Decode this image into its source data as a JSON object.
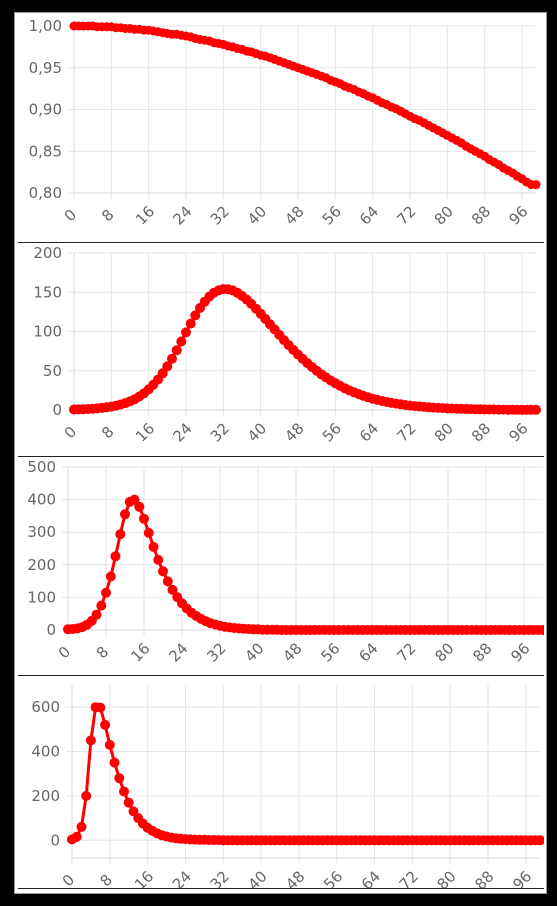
{
  "colors": {
    "series": "#ff0000",
    "background": "#ffffff",
    "grid": "#e6e6ec"
  },
  "chart_data": [
    {
      "type": "line",
      "x": [
        0,
        1,
        2,
        3,
        4,
        5,
        6,
        7,
        8,
        9,
        10,
        11,
        12,
        13,
        14,
        15,
        16,
        17,
        18,
        19,
        20,
        21,
        22,
        23,
        24,
        25,
        26,
        27,
        28,
        29,
        30,
        31,
        32,
        33,
        34,
        35,
        36,
        37,
        38,
        39,
        40,
        41,
        42,
        43,
        44,
        45,
        46,
        47,
        48,
        49,
        50,
        51,
        52,
        53,
        54,
        55,
        56,
        57,
        58,
        59,
        60,
        61,
        62,
        63,
        64,
        65,
        66,
        67,
        68,
        69,
        70,
        71,
        72,
        73,
        74,
        75,
        76,
        77,
        78,
        79,
        80,
        81,
        82,
        83,
        84,
        85,
        86,
        87,
        88,
        89,
        90,
        91,
        92,
        93,
        94,
        95,
        96,
        97,
        98,
        99
      ],
      "series": [
        {
          "values": [
            1.0,
            1.0,
            1.0,
            1.0,
            1.0,
            0.999,
            0.999,
            0.999,
            0.999,
            0.998,
            0.998,
            0.997,
            0.997,
            0.996,
            0.996,
            0.995,
            0.995,
            0.994,
            0.993,
            0.992,
            0.991,
            0.99,
            0.99,
            0.989,
            0.988,
            0.987,
            0.985,
            0.984,
            0.983,
            0.982,
            0.98,
            0.979,
            0.978,
            0.976,
            0.975,
            0.973,
            0.972,
            0.97,
            0.969,
            0.967,
            0.965,
            0.964,
            0.962,
            0.96,
            0.958,
            0.956,
            0.954,
            0.952,
            0.95,
            0.948,
            0.946,
            0.944,
            0.942,
            0.94,
            0.938,
            0.935,
            0.933,
            0.931,
            0.928,
            0.926,
            0.924,
            0.921,
            0.919,
            0.916,
            0.914,
            0.911,
            0.908,
            0.906,
            0.903,
            0.901,
            0.898,
            0.895,
            0.892,
            0.889,
            0.887,
            0.884,
            0.881,
            0.878,
            0.875,
            0.872,
            0.869,
            0.866,
            0.863,
            0.86,
            0.856,
            0.853,
            0.85,
            0.847,
            0.844,
            0.84,
            0.837,
            0.834,
            0.83,
            0.827,
            0.824,
            0.82,
            0.817,
            0.813,
            0.81,
            0.81
          ]
        }
      ],
      "ylim": [
        0.8,
        1.0
      ],
      "y_ticks": [
        "1,00",
        "0,95",
        "0,90",
        "0,85",
        "0,80"
      ],
      "x_ticks": [
        "0",
        "8",
        "16",
        "24",
        "32",
        "40",
        "48",
        "56",
        "64",
        "72",
        "80",
        "88",
        "96"
      ],
      "grid": true
    },
    {
      "type": "line",
      "x": [
        0,
        1,
        2,
        3,
        4,
        5,
        6,
        7,
        8,
        9,
        10,
        11,
        12,
        13,
        14,
        15,
        16,
        17,
        18,
        19,
        20,
        21,
        22,
        23,
        24,
        25,
        26,
        27,
        28,
        29,
        30,
        31,
        32,
        33,
        34,
        35,
        36,
        37,
        38,
        39,
        40,
        41,
        42,
        43,
        44,
        45,
        46,
        47,
        48,
        49,
        50,
        51,
        52,
        53,
        54,
        55,
        56,
        57,
        58,
        59,
        60,
        61,
        62,
        63,
        64,
        65,
        66,
        67,
        68,
        69,
        70,
        71,
        72,
        73,
        74,
        75,
        76,
        77,
        78,
        79,
        80,
        81,
        82,
        83,
        84,
        85,
        86,
        87,
        88,
        89,
        90,
        91,
        92,
        93,
        94,
        95,
        96,
        97,
        98,
        99
      ],
      "series": [
        {
          "values": [
            0.6,
            0.8,
            1.0,
            1.3,
            1.7,
            2.1,
            2.7,
            3.4,
            4.3,
            5.5,
            7.0,
            8.8,
            11.0,
            13.8,
            17.2,
            21.3,
            26.2,
            32.1,
            38.9,
            46.7,
            55.6,
            65.4,
            76.1,
            87.3,
            98.8,
            110.0,
            120.5,
            129.9,
            137.9,
            144.5,
            149.4,
            152.5,
            154.0,
            153.9,
            152.3,
            149.4,
            145.4,
            140.6,
            135.1,
            129.0,
            122.6,
            116.0,
            109.2,
            102.5,
            95.7,
            89.1,
            82.7,
            76.6,
            70.7,
            65.1,
            59.8,
            54.8,
            50.0,
            45.6,
            41.5,
            37.6,
            34.1,
            30.8,
            27.8,
            25.0,
            22.5,
            20.2,
            18.1,
            16.2,
            14.4,
            12.9,
            11.5,
            10.2,
            9.1,
            8.1,
            7.2,
            6.4,
            5.6,
            5.0,
            4.4,
            3.9,
            3.5,
            3.1,
            2.7,
            2.4,
            2.1,
            1.9,
            1.7,
            1.5,
            1.3,
            1.2,
            1.0,
            0.9,
            0.8,
            0.7,
            0.6,
            0.5,
            0.5,
            0.4,
            0.4,
            0.3,
            0.3,
            0.3,
            0.2,
            0.2
          ]
        }
      ],
      "ylim": [
        0,
        200
      ],
      "y_ticks": [
        "200",
        "150",
        "100",
        "50",
        "0"
      ],
      "x_ticks": [
        "0",
        "8",
        "16",
        "24",
        "32",
        "40",
        "48",
        "56",
        "64",
        "72",
        "80",
        "88",
        "96"
      ],
      "grid": true
    },
    {
      "type": "line",
      "x": [
        0,
        1,
        2,
        3,
        4,
        5,
        6,
        7,
        8,
        9,
        10,
        11,
        12,
        13,
        14,
        15,
        16,
        17,
        18,
        19,
        20,
        21,
        22,
        23,
        24,
        25,
        26,
        27,
        28,
        29,
        30,
        31,
        32,
        33,
        34,
        35,
        36,
        37,
        38,
        39,
        40,
        41,
        42,
        43,
        44,
        45,
        46,
        47,
        48,
        49,
        50,
        51,
        52,
        53,
        54,
        55,
        56,
        57,
        58,
        59,
        60,
        61,
        62,
        63,
        64,
        65,
        66,
        67,
        68,
        69,
        70,
        71,
        72,
        73,
        74,
        75,
        76,
        77,
        78,
        79,
        80,
        81,
        82,
        83,
        84,
        85,
        86,
        87,
        88,
        89,
        90,
        91,
        92,
        93,
        94,
        95,
        96,
        97,
        98,
        99,
        100
      ],
      "series": [
        {
          "values": [
            2,
            3,
            5,
            9,
            16,
            28,
            47,
            75,
            114,
            164,
            226,
            294,
            355,
            393,
            400,
            378,
            341,
            298,
            255,
            215,
            180,
            149,
            123,
            101,
            82,
            66,
            53,
            43,
            34,
            27,
            21,
            17,
            13,
            10,
            8,
            6,
            5,
            4,
            3,
            2,
            2,
            1,
            1,
            1,
            1,
            0,
            0,
            0,
            0,
            0,
            0,
            0,
            0,
            0,
            0,
            0,
            0,
            0,
            0,
            0,
            0,
            0,
            0,
            0,
            0,
            0,
            0,
            0,
            0,
            0,
            0,
            0,
            0,
            0,
            0,
            0,
            0,
            0,
            0,
            0,
            0,
            0,
            0,
            0,
            0,
            0,
            0,
            0,
            0,
            0,
            0,
            0,
            0,
            0,
            0,
            0,
            0,
            0,
            0,
            0,
            0
          ]
        }
      ],
      "ylim": [
        0,
        500
      ],
      "y_ticks": [
        "500",
        "400",
        "300",
        "200",
        "100",
        "0"
      ],
      "x_ticks": [
        "0",
        "8",
        "16",
        "24",
        "32",
        "40",
        "48",
        "56",
        "64",
        "72",
        "80",
        "88",
        "96"
      ],
      "grid": true
    },
    {
      "type": "line",
      "x": [
        0,
        1,
        2,
        3,
        4,
        5,
        6,
        7,
        8,
        9,
        10,
        11,
        12,
        13,
        14,
        15,
        16,
        17,
        18,
        19,
        20,
        21,
        22,
        23,
        24,
        25,
        26,
        27,
        28,
        29,
        30,
        31,
        32,
        33,
        34,
        35,
        36,
        37,
        38,
        39,
        40,
        41,
        42,
        43,
        44,
        45,
        46,
        47,
        48,
        49,
        50,
        51,
        52,
        53,
        54,
        55,
        56,
        57,
        58,
        59,
        60,
        61,
        62,
        63,
        64,
        65,
        66,
        67,
        68,
        69,
        70,
        71,
        72,
        73,
        74,
        75,
        76,
        77,
        78,
        79,
        80,
        81,
        82,
        83,
        84,
        85,
        86,
        87,
        88,
        89,
        90,
        91,
        92,
        93,
        94,
        95,
        96,
        97,
        98,
        99
      ],
      "series": [
        {
          "values": [
            4,
            15,
            60,
            200,
            450,
            600,
            598,
            520,
            430,
            350,
            280,
            220,
            170,
            130,
            100,
            75,
            56,
            42,
            31,
            23,
            17,
            12,
            9,
            7,
            5,
            4,
            3,
            2,
            2,
            1,
            1,
            1,
            0,
            0,
            0,
            0,
            0,
            0,
            0,
            0,
            0,
            0,
            0,
            0,
            0,
            0,
            0,
            0,
            0,
            0,
            0,
            0,
            0,
            0,
            0,
            0,
            0,
            0,
            0,
            0,
            0,
            0,
            0,
            0,
            0,
            0,
            0,
            0,
            0,
            0,
            0,
            0,
            0,
            0,
            0,
            0,
            0,
            0,
            0,
            0,
            0,
            0,
            0,
            0,
            0,
            0,
            0,
            0,
            0,
            0,
            0,
            0,
            0,
            0,
            0,
            0,
            0,
            0,
            0,
            0
          ]
        }
      ],
      "ylim": [
        -80,
        700
      ],
      "y_ticks": [
        "600",
        "400",
        "200",
        "0"
      ],
      "y_tick_values": [
        600,
        400,
        200,
        0
      ],
      "x_ticks": [
        "0",
        "8",
        "16",
        "24",
        "32",
        "40",
        "48",
        "56",
        "64",
        "72",
        "80",
        "88",
        "96"
      ],
      "grid": true
    }
  ]
}
